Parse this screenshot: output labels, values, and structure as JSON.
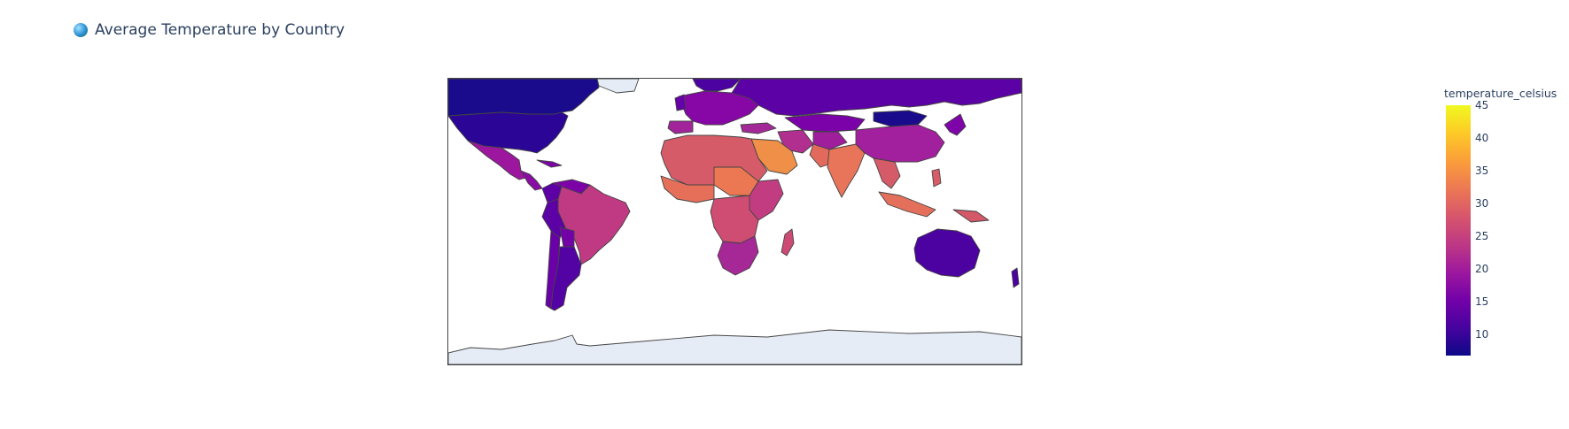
{
  "title": "Average Temperature by Country",
  "title_icon": "globe-icon",
  "map": {
    "projection": "equirectangular",
    "land_background": "#e5ecf6",
    "border_color": "#444444",
    "countries": [
      {
        "name": "Canada",
        "value": 7
      },
      {
        "name": "United States",
        "value": 11
      },
      {
        "name": "Mexico",
        "value": 21
      },
      {
        "name": "Brazil",
        "value": 25
      },
      {
        "name": "Argentina",
        "value": 14
      },
      {
        "name": "Peru",
        "value": 15
      },
      {
        "name": "Colombia",
        "value": 14
      },
      {
        "name": "Russia",
        "value": 13
      },
      {
        "name": "Mongolia",
        "value": 7
      },
      {
        "name": "China",
        "value": 19
      },
      {
        "name": "India",
        "value": 32
      },
      {
        "name": "Saudi Arabia",
        "value": 34
      },
      {
        "name": "North Africa",
        "value": 27
      },
      {
        "name": "Central Africa",
        "value": 26
      },
      {
        "name": "Southern Africa",
        "value": 22
      },
      {
        "name": "Madagascar",
        "value": 25
      },
      {
        "name": "Europe",
        "value": 18
      },
      {
        "name": "Indonesia",
        "value": 30
      },
      {
        "name": "Australia",
        "value": 12
      },
      {
        "name": "Japan",
        "value": 16
      }
    ]
  },
  "colorbar": {
    "title": "temperature_celsius",
    "ticks": [
      "45",
      "40",
      "35",
      "30",
      "25",
      "20",
      "15",
      "10"
    ],
    "range": [
      6,
      45
    ],
    "colorscale": "plasma"
  }
}
